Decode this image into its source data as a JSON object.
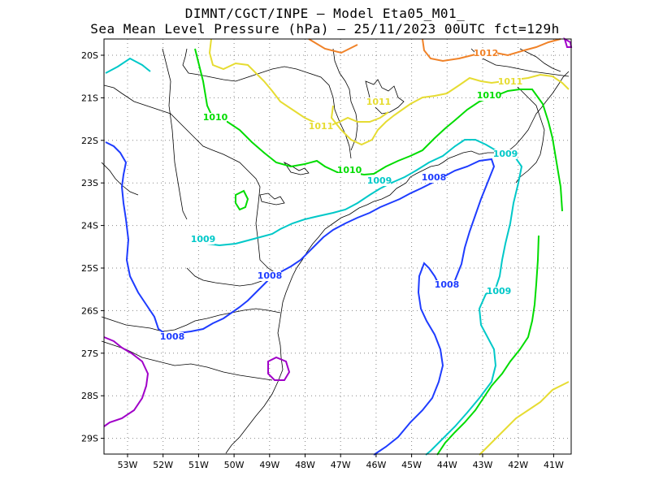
{
  "title": {
    "line1": "DIMNT/CGCT/INPE –  Model Eta05_M01_",
    "line2": "Sea Mean Level Pressure (hPa) – 25/11/2023 00UTC fct=129h"
  },
  "map": {
    "lon_labels": [
      "53W",
      "52W",
      "51W",
      "50W",
      "49W",
      "48W",
      "47W",
      "46W",
      "45W",
      "44W",
      "43W",
      "42W",
      "41W"
    ],
    "lat_labels": [
      "20S",
      "21S",
      "22S",
      "23S",
      "24S",
      "25S",
      "26S",
      "27S",
      "28S",
      "29S"
    ],
    "colors": {
      "c1007": "#a000c8",
      "c1008": "#1e3cff",
      "c1009": "#00c8c8",
      "c1010": "#00dc00",
      "c1011": "#e6dc32",
      "c1012": "#f08228",
      "coast": "#000000",
      "grid": "#888888"
    },
    "contour_labels": [
      {
        "text": "1012",
        "color": "c1012"
      },
      {
        "text": "1011",
        "color": "c1011"
      },
      {
        "text": "1011",
        "color": "c1011"
      },
      {
        "text": "1011",
        "color": "c1011"
      },
      {
        "text": "1010",
        "color": "c1010"
      },
      {
        "text": "1010",
        "color": "c1010"
      },
      {
        "text": "1010",
        "color": "c1010"
      },
      {
        "text": "1009",
        "color": "c1009"
      },
      {
        "text": "1009",
        "color": "c1009"
      },
      {
        "text": "1009",
        "color": "c1009"
      },
      {
        "text": "1009",
        "color": "c1009"
      },
      {
        "text": "1008",
        "color": "c1008"
      },
      {
        "text": "1008",
        "color": "c1008"
      },
      {
        "text": "1008",
        "color": "c1008"
      },
      {
        "text": "1008",
        "color": "c1008"
      }
    ]
  }
}
